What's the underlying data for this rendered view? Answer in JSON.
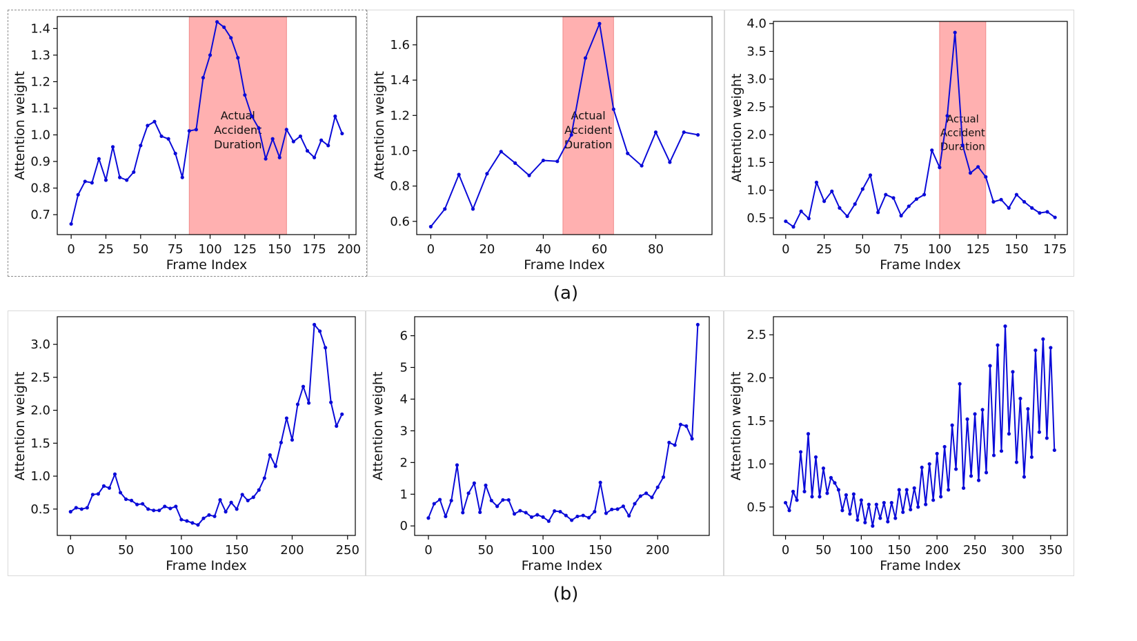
{
  "captions": {
    "a": "(a)",
    "b": "(b)"
  },
  "colors": {
    "line": "#0a0ad8",
    "shade": "#ffb0b0",
    "shade_edge": "#f08a8a",
    "axis": "#000000"
  },
  "chart_data": [
    {
      "type": "line",
      "row": "a",
      "xlabel": "Frame Index",
      "ylabel": "Attention weight",
      "xlim": [
        -10,
        205
      ],
      "ylim": [
        0.625,
        1.445
      ],
      "xticks": [
        0,
        25,
        50,
        75,
        100,
        125,
        150,
        175,
        200
      ],
      "yticks": [
        0.7,
        0.8,
        0.9,
        1.0,
        1.1,
        1.2,
        1.3,
        1.4
      ],
      "ytick_labels": [
        "0.7",
        "0.8",
        "0.9",
        "1.0",
        "1.1",
        "1.2",
        "1.3",
        "1.4"
      ],
      "highlight": {
        "start": 85,
        "end": 155,
        "label": [
          "Actual",
          "Accident",
          "Duration"
        ]
      },
      "x": [
        0,
        5,
        10,
        15,
        20,
        25,
        30,
        35,
        40,
        45,
        50,
        55,
        60,
        65,
        70,
        75,
        80,
        85,
        90,
        95,
        100,
        105,
        110,
        115,
        120,
        125,
        130,
        135,
        140,
        145,
        150,
        155,
        160,
        165,
        170,
        175,
        180,
        185,
        190,
        195
      ],
      "y": [
        0.665,
        0.775,
        0.825,
        0.82,
        0.91,
        0.83,
        0.955,
        0.84,
        0.83,
        0.86,
        0.96,
        1.035,
        1.05,
        0.995,
        0.985,
        0.93,
        0.84,
        1.015,
        1.02,
        1.215,
        1.3,
        1.425,
        1.405,
        1.365,
        1.29,
        1.15,
        1.07,
        1.025,
        0.91,
        0.985,
        0.915,
        1.02,
        0.975,
        0.995,
        0.94,
        0.915,
        0.98,
        0.96,
        1.07,
        1.005
      ]
    },
    {
      "type": "line",
      "row": "a",
      "xlabel": "Frame Index",
      "ylabel": "Attention weight",
      "xlim": [
        -5,
        100
      ],
      "ylim": [
        0.525,
        1.76
      ],
      "xticks": [
        0,
        20,
        40,
        60,
        80
      ],
      "yticks": [
        0.6,
        0.8,
        1.0,
        1.2,
        1.4,
        1.6
      ],
      "ytick_labels": [
        "0.6",
        "0.8",
        "1.0",
        "1.2",
        "1.4",
        "1.6"
      ],
      "highlight": {
        "start": 47,
        "end": 65,
        "label": [
          "Actual",
          "Accident",
          "Duration"
        ]
      },
      "x": [
        0,
        5,
        10,
        15,
        20,
        25,
        30,
        35,
        40,
        45,
        50,
        55,
        60,
        65,
        70,
        75,
        80,
        85,
        90,
        95
      ],
      "y": [
        0.57,
        0.67,
        0.865,
        0.67,
        0.87,
        0.995,
        0.93,
        0.86,
        0.945,
        0.94,
        1.09,
        1.525,
        1.72,
        1.235,
        0.985,
        0.915,
        1.105,
        0.935,
        1.105,
        1.09
      ]
    },
    {
      "type": "line",
      "row": "a",
      "xlabel": "Frame Index",
      "ylabel": "Attention weight",
      "xlim": [
        -8,
        183
      ],
      "ylim": [
        0.2,
        4.04
      ],
      "xticks": [
        0,
        25,
        50,
        75,
        100,
        125,
        150,
        175
      ],
      "yticks": [
        0.5,
        1.0,
        1.5,
        2.0,
        2.5,
        3.0,
        3.5,
        4.0
      ],
      "ytick_labels": [
        "0.5",
        "1.0",
        "1.5",
        "2.0",
        "2.5",
        "3.0",
        "3.5",
        "4.0"
      ],
      "highlight": {
        "start": 100,
        "end": 130,
        "label": [
          "Actual",
          "Accident",
          "Duration"
        ]
      },
      "x": [
        0,
        5,
        10,
        15,
        20,
        25,
        30,
        35,
        40,
        45,
        50,
        55,
        60,
        65,
        70,
        75,
        80,
        85,
        90,
        95,
        100,
        105,
        110,
        115,
        120,
        125,
        130,
        135,
        140,
        145,
        150,
        155,
        160,
        165,
        170,
        175
      ],
      "y": [
        0.44,
        0.34,
        0.62,
        0.49,
        1.14,
        0.8,
        0.98,
        0.68,
        0.53,
        0.75,
        1.02,
        1.27,
        0.6,
        0.92,
        0.86,
        0.54,
        0.71,
        0.84,
        0.92,
        1.72,
        1.41,
        2.34,
        3.84,
        1.81,
        1.31,
        1.42,
        1.24,
        0.79,
        0.83,
        0.68,
        0.92,
        0.79,
        0.68,
        0.59,
        0.61,
        0.51
      ]
    },
    {
      "type": "line",
      "row": "b",
      "xlabel": "Frame Index",
      "ylabel": "Attention weight",
      "xlim": [
        -12,
        257
      ],
      "ylim": [
        0.1,
        3.42
      ],
      "xticks": [
        0,
        50,
        100,
        150,
        200,
        250
      ],
      "yticks": [
        0.5,
        1.0,
        1.5,
        2.0,
        2.5,
        3.0
      ],
      "ytick_labels": [
        "0.5",
        "1.0",
        "1.5",
        "2.0",
        "2.5",
        "3.0"
      ],
      "x": [
        0,
        5,
        10,
        15,
        20,
        25,
        30,
        35,
        40,
        45,
        50,
        55,
        60,
        65,
        70,
        75,
        80,
        85,
        90,
        95,
        100,
        105,
        110,
        115,
        120,
        125,
        130,
        135,
        140,
        145,
        150,
        155,
        160,
        165,
        170,
        175,
        180,
        185,
        190,
        195,
        200,
        205,
        210,
        215,
        220,
        225,
        230,
        235,
        240,
        245
      ],
      "y": [
        0.46,
        0.52,
        0.5,
        0.52,
        0.72,
        0.73,
        0.85,
        0.82,
        1.03,
        0.75,
        0.65,
        0.63,
        0.57,
        0.58,
        0.5,
        0.48,
        0.48,
        0.54,
        0.51,
        0.54,
        0.34,
        0.32,
        0.29,
        0.26,
        0.36,
        0.41,
        0.39,
        0.64,
        0.46,
        0.6,
        0.5,
        0.72,
        0.63,
        0.68,
        0.79,
        0.97,
        1.32,
        1.15,
        1.51,
        1.88,
        1.55,
        2.09,
        2.36,
        2.11,
        3.3,
        3.2,
        2.95,
        2.12,
        1.76,
        1.94
      ]
    },
    {
      "type": "line",
      "row": "b",
      "xlabel": "Frame Index",
      "ylabel": "Attention weight",
      "xlim": [
        -12,
        245
      ],
      "ylim": [
        -0.3,
        6.6
      ],
      "xticks": [
        0,
        50,
        100,
        150,
        200
      ],
      "yticks": [
        0,
        1,
        2,
        3,
        4,
        5,
        6
      ],
      "ytick_labels": [
        "0",
        "1",
        "2",
        "3",
        "4",
        "5",
        "6"
      ],
      "x": [
        0,
        5,
        10,
        15,
        20,
        25,
        30,
        35,
        40,
        45,
        50,
        55,
        60,
        65,
        70,
        75,
        80,
        85,
        90,
        95,
        100,
        105,
        110,
        115,
        120,
        125,
        130,
        135,
        140,
        145,
        150,
        155,
        160,
        165,
        170,
        175,
        180,
        185,
        190,
        195,
        200,
        205,
        210,
        215,
        220,
        225,
        230,
        235
      ],
      "y": [
        0.25,
        0.7,
        0.83,
        0.3,
        0.8,
        1.92,
        0.42,
        1.03,
        1.35,
        0.43,
        1.28,
        0.8,
        0.62,
        0.82,
        0.82,
        0.38,
        0.48,
        0.42,
        0.28,
        0.35,
        0.28,
        0.15,
        0.47,
        0.45,
        0.33,
        0.18,
        0.3,
        0.33,
        0.26,
        0.45,
        1.37,
        0.4,
        0.52,
        0.53,
        0.62,
        0.32,
        0.7,
        0.94,
        1.03,
        0.9,
        1.22,
        1.54,
        2.63,
        2.55,
        3.2,
        3.15,
        2.75,
        6.35
      ]
    },
    {
      "type": "line",
      "row": "b",
      "xlabel": "Frame Index",
      "ylabel": "Attention weight",
      "xlim": [
        -16,
        372
      ],
      "ylim": [
        0.17,
        2.71
      ],
      "xticks": [
        0,
        50,
        100,
        150,
        200,
        250,
        300,
        350
      ],
      "yticks": [
        0.5,
        1.0,
        1.5,
        2.0,
        2.5
      ],
      "ytick_labels": [
        "0.5",
        "1.0",
        "1.5",
        "2.0",
        "2.5"
      ],
      "x": [
        0,
        5,
        10,
        15,
        20,
        25,
        30,
        35,
        40,
        45,
        50,
        55,
        60,
        65,
        70,
        75,
        80,
        85,
        90,
        95,
        100,
        105,
        110,
        115,
        120,
        125,
        130,
        135,
        140,
        145,
        150,
        155,
        160,
        165,
        170,
        175,
        180,
        185,
        190,
        195,
        200,
        205,
        210,
        215,
        220,
        225,
        230,
        235,
        240,
        245,
        250,
        255,
        260,
        265,
        270,
        275,
        280,
        285,
        290,
        295,
        300,
        305,
        310,
        315,
        320,
        325,
        330,
        335,
        340,
        345,
        350,
        355
      ],
      "y": [
        0.55,
        0.46,
        0.68,
        0.58,
        1.14,
        0.68,
        1.35,
        0.62,
        1.08,
        0.62,
        0.95,
        0.66,
        0.84,
        0.78,
        0.7,
        0.46,
        0.64,
        0.42,
        0.65,
        0.35,
        0.58,
        0.32,
        0.53,
        0.28,
        0.53,
        0.37,
        0.55,
        0.33,
        0.55,
        0.37,
        0.7,
        0.44,
        0.7,
        0.47,
        0.72,
        0.5,
        0.96,
        0.53,
        1.0,
        0.58,
        1.12,
        0.62,
        1.2,
        0.7,
        1.45,
        0.94,
        1.93,
        0.72,
        1.52,
        0.86,
        1.58,
        0.81,
        1.63,
        0.9,
        2.14,
        1.1,
        2.38,
        1.15,
        2.6,
        1.35,
        2.07,
        1.02,
        1.76,
        0.85,
        1.64,
        1.08,
        2.32,
        1.37,
        2.45,
        1.3,
        2.35,
        1.16
      ]
    }
  ]
}
